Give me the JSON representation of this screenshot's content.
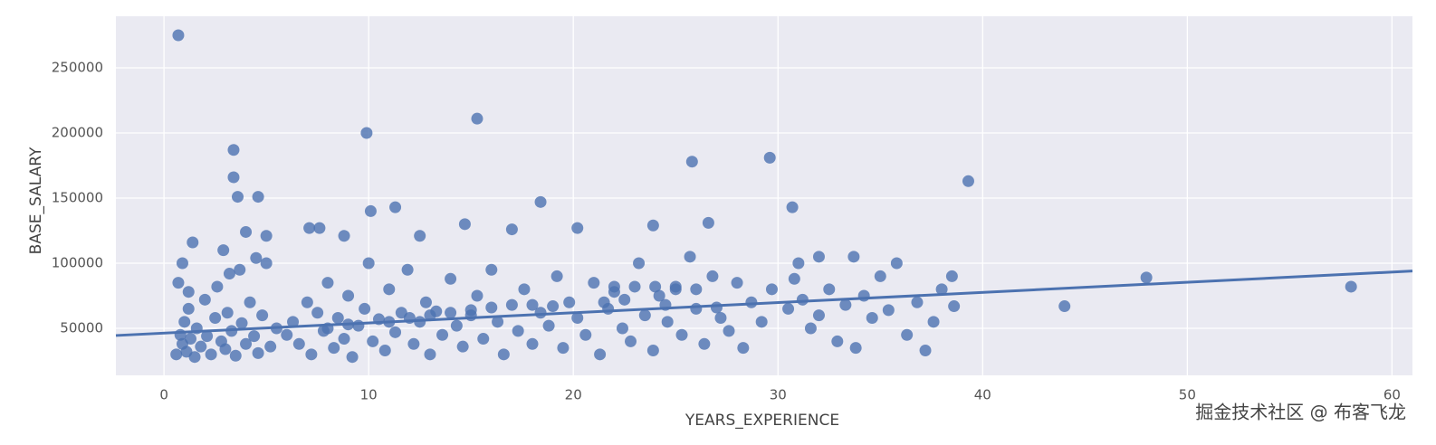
{
  "chart_data": {
    "type": "scatter",
    "xlabel": "YEARS_EXPERIENCE",
    "ylabel": "BASE_SALARY",
    "xlim": [
      -2.35,
      61.0
    ],
    "ylim": [
      13900,
      289600
    ],
    "xticks": [
      0,
      10,
      20,
      30,
      40,
      50,
      60
    ],
    "yticks": [
      50000,
      100000,
      150000,
      200000,
      250000
    ],
    "grid": true,
    "color": "#4c72b0",
    "x": [
      0.7,
      3.4,
      3.4,
      3.6,
      4.6,
      9.9,
      15.3,
      25.8,
      29.6,
      39.3,
      30.7,
      18.4,
      11.3,
      10.1,
      14.7,
      23.9,
      26.6,
      20.2,
      17.0,
      7.1,
      7.6,
      4.0,
      1.4,
      5.0,
      8.8,
      12.5,
      44.0,
      48.0,
      58.0,
      33.7,
      32.0,
      31.0,
      0.6,
      0.8,
      0.9,
      1.0,
      1.1,
      1.2,
      1.3,
      1.5,
      1.6,
      1.8,
      2.0,
      2.1,
      2.3,
      2.5,
      2.6,
      2.8,
      3.0,
      3.1,
      3.3,
      3.5,
      3.7,
      3.8,
      4.0,
      4.2,
      4.4,
      4.6,
      4.8,
      5.0,
      5.2,
      5.5,
      0.7,
      0.9,
      1.2,
      2.9,
      3.2,
      4.5,
      6.0,
      6.3,
      6.6,
      7.0,
      7.2,
      7.5,
      7.8,
      8.0,
      8.3,
      8.5,
      8.8,
      9.0,
      9.2,
      9.5,
      9.8,
      10.0,
      10.2,
      10.5,
      10.8,
      11.0,
      11.3,
      11.6,
      11.9,
      12.2,
      12.5,
      12.8,
      13.0,
      13.3,
      13.6,
      14.0,
      14.3,
      14.6,
      15.0,
      15.3,
      15.6,
      16.0,
      16.3,
      16.6,
      17.0,
      17.3,
      17.6,
      18.0,
      18.4,
      18.8,
      19.2,
      19.5,
      19.8,
      20.2,
      20.6,
      21.0,
      21.3,
      21.7,
      22.0,
      22.4,
      22.8,
      23.2,
      23.5,
      23.9,
      24.2,
      24.6,
      25.0,
      25.3,
      25.7,
      26.0,
      26.4,
      26.8,
      27.2,
      27.6,
      28.0,
      28.3,
      28.7,
      29.2,
      29.7,
      30.5,
      30.8,
      31.2,
      31.6,
      32.0,
      32.5,
      32.9,
      33.3,
      33.8,
      34.2,
      34.6,
      35.0,
      35.4,
      35.8,
      36.3,
      36.8,
      37.2,
      37.6,
      38.0,
      38.5,
      38.6,
      22.0,
      23.0,
      24.0,
      25.0,
      26.0,
      21.5,
      22.5,
      24.5,
      27.0,
      14.0,
      15.0,
      16.0,
      18.0,
      19.0,
      8.0,
      9.0,
      11.0,
      12.0,
      13.0
    ],
    "values": [
      275000,
      187000,
      166000,
      151000,
      151000,
      200000,
      211000,
      178000,
      181000,
      163000,
      143000,
      147000,
      143000,
      140000,
      130000,
      129000,
      131000,
      127000,
      126000,
      127000,
      127000,
      124000,
      116000,
      121000,
      121000,
      121000,
      67000,
      89000,
      82000,
      105000,
      105000,
      100000,
      30000,
      45000,
      38000,
      55000,
      32000,
      65000,
      42000,
      28000,
      50000,
      36000,
      72000,
      44000,
      30000,
      58000,
      82000,
      40000,
      34000,
      62000,
      48000,
      29000,
      95000,
      54000,
      38000,
      70000,
      44000,
      31000,
      60000,
      100000,
      36000,
      50000,
      85000,
      100000,
      78000,
      110000,
      92000,
      104000,
      45000,
      55000,
      38000,
      70000,
      30000,
      62000,
      48000,
      85000,
      35000,
      58000,
      42000,
      75000,
      28000,
      52000,
      65000,
      100000,
      40000,
      57000,
      33000,
      80000,
      47000,
      62000,
      95000,
      38000,
      55000,
      70000,
      30000,
      63000,
      45000,
      88000,
      52000,
      36000,
      60000,
      75000,
      42000,
      95000,
      55000,
      30000,
      68000,
      48000,
      80000,
      38000,
      62000,
      52000,
      90000,
      35000,
      70000,
      58000,
      45000,
      85000,
      30000,
      65000,
      78000,
      50000,
      40000,
      100000,
      60000,
      33000,
      75000,
      55000,
      80000,
      45000,
      105000,
      65000,
      38000,
      90000,
      58000,
      48000,
      85000,
      35000,
      70000,
      55000,
      80000,
      65000,
      88000,
      72000,
      50000,
      60000,
      80000,
      40000,
      68000,
      35000,
      75000,
      58000,
      90000,
      64000,
      100000,
      45000,
      70000,
      33000,
      55000,
      80000,
      90000,
      67000,
      82000,
      82000,
      82000,
      82000,
      80000,
      70000,
      72000,
      68000,
      66000,
      62000,
      64000,
      66000,
      68000,
      67000,
      50000,
      53000,
      55000,
      58000,
      60000
    ],
    "trend": {
      "x": [
        -2.35,
        61.0
      ],
      "values": [
        44500,
        94000
      ]
    }
  },
  "watermark": "掘金技术社区 @ 布客飞龙"
}
